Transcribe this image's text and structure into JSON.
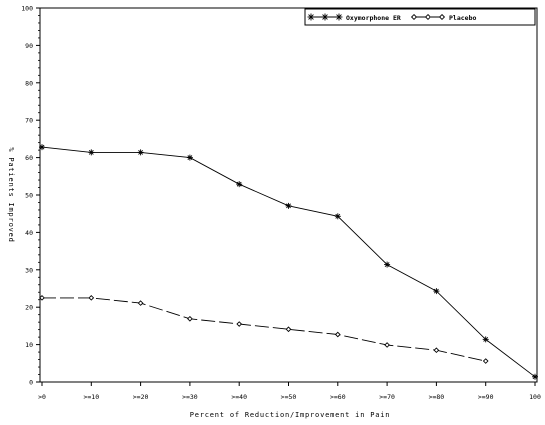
{
  "chart_data": {
    "type": "line",
    "title": "",
    "xlabel": "Percent of Reduction/Improvement in Pain",
    "ylabel": "% Patients Improved",
    "categories": [
      ">0",
      ">=10",
      ">=20",
      ">=30",
      ">=40",
      ">=50",
      ">=60",
      ">=70",
      ">=80",
      ">=90",
      "100"
    ],
    "ylim": [
      0,
      100
    ],
    "yticks": [
      "0",
      "10",
      "20",
      "30",
      "40",
      "50",
      "60",
      "70",
      "80",
      "90",
      "100"
    ],
    "grid": false,
    "legend_position": "top-right",
    "series": [
      {
        "name": "Oxymorphone ER",
        "marker": "asterisk",
        "line_style": "solid",
        "color": "#000000",
        "values": [
          62.8,
          61.4,
          61.4,
          60.0,
          52.9,
          47.1,
          44.3,
          31.4,
          24.3,
          11.4,
          1.4
        ]
      },
      {
        "name": "Placebo",
        "marker": "diamond",
        "line_style": "long-dash",
        "color": "#000000",
        "values": [
          22.5,
          22.5,
          21.1,
          16.9,
          15.5,
          14.1,
          12.7,
          9.9,
          8.5,
          5.6,
          null
        ]
      }
    ]
  }
}
